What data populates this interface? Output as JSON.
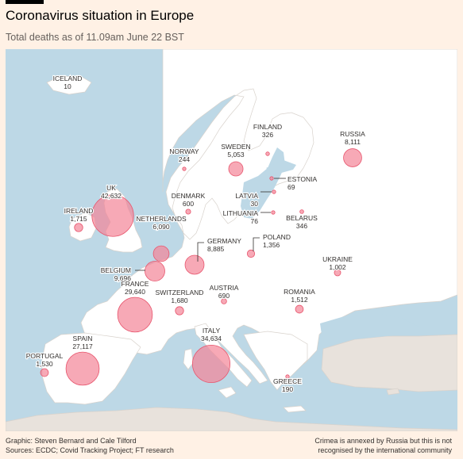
{
  "header": {
    "title": "Coronavirus situation in Europe",
    "subtitle": "Total deaths as of 11.09am June 22 BST"
  },
  "footer": {
    "graphic": "Graphic: Steven Bernard and Cale Tilford",
    "sources": "Sources: ECDC; Covid Tracking Project; FT research",
    "note_line1": "Crimea is annexed by Russia but this is not",
    "note_line2": "recognised by the international community"
  },
  "colors": {
    "background": "#fff1e5",
    "sea": "#bdd8e6",
    "land": "#ffffff",
    "outside_land": "#e8e2dc",
    "bubble_fill": "#f48597",
    "bubble_stroke": "#e8566e"
  },
  "countries": [
    {
      "id": "iceland",
      "name": "ICELAND",
      "deaths": "10"
    },
    {
      "id": "norway",
      "name": "NORWAY",
      "deaths": "244"
    },
    {
      "id": "sweden",
      "name": "SWEDEN",
      "deaths": "5,053"
    },
    {
      "id": "finland",
      "name": "FINLAND",
      "deaths": "326"
    },
    {
      "id": "russia",
      "name": "RUSSIA",
      "deaths": "8,111"
    },
    {
      "id": "estonia",
      "name": "ESTONIA",
      "deaths": "69"
    },
    {
      "id": "latvia",
      "name": "LATVIA",
      "deaths": "30"
    },
    {
      "id": "lithuania",
      "name": "LITHUANIA",
      "deaths": "76"
    },
    {
      "id": "belarus",
      "name": "BELARUS",
      "deaths": "346"
    },
    {
      "id": "denmark",
      "name": "DENMARK",
      "deaths": "600"
    },
    {
      "id": "uk",
      "name": "UK",
      "deaths": "42,632"
    },
    {
      "id": "ireland",
      "name": "IRELAND",
      "deaths": "1,715"
    },
    {
      "id": "netherlands",
      "name": "NETHERLANDS",
      "deaths": "6,090"
    },
    {
      "id": "germany",
      "name": "GERMANY",
      "deaths": "8,885"
    },
    {
      "id": "poland",
      "name": "POLAND",
      "deaths": "1,356"
    },
    {
      "id": "belgium",
      "name": "BELGIUM",
      "deaths": "9,696"
    },
    {
      "id": "ukraine",
      "name": "UKRAINE",
      "deaths": "1,002"
    },
    {
      "id": "france",
      "name": "FRANCE",
      "deaths": "29,640"
    },
    {
      "id": "switzerland",
      "name": "SWITZERLAND",
      "deaths": "1,680"
    },
    {
      "id": "austria",
      "name": "AUSTRIA",
      "deaths": "690"
    },
    {
      "id": "romania",
      "name": "ROMANIA",
      "deaths": "1,512"
    },
    {
      "id": "italy",
      "name": "ITALY",
      "deaths": "34,634"
    },
    {
      "id": "spain",
      "name": "SPAIN",
      "deaths": "27,117"
    },
    {
      "id": "portugal",
      "name": "PORTUGAL",
      "deaths": "1,530"
    },
    {
      "id": "greece",
      "name": "GREECE",
      "deaths": "190"
    }
  ]
}
